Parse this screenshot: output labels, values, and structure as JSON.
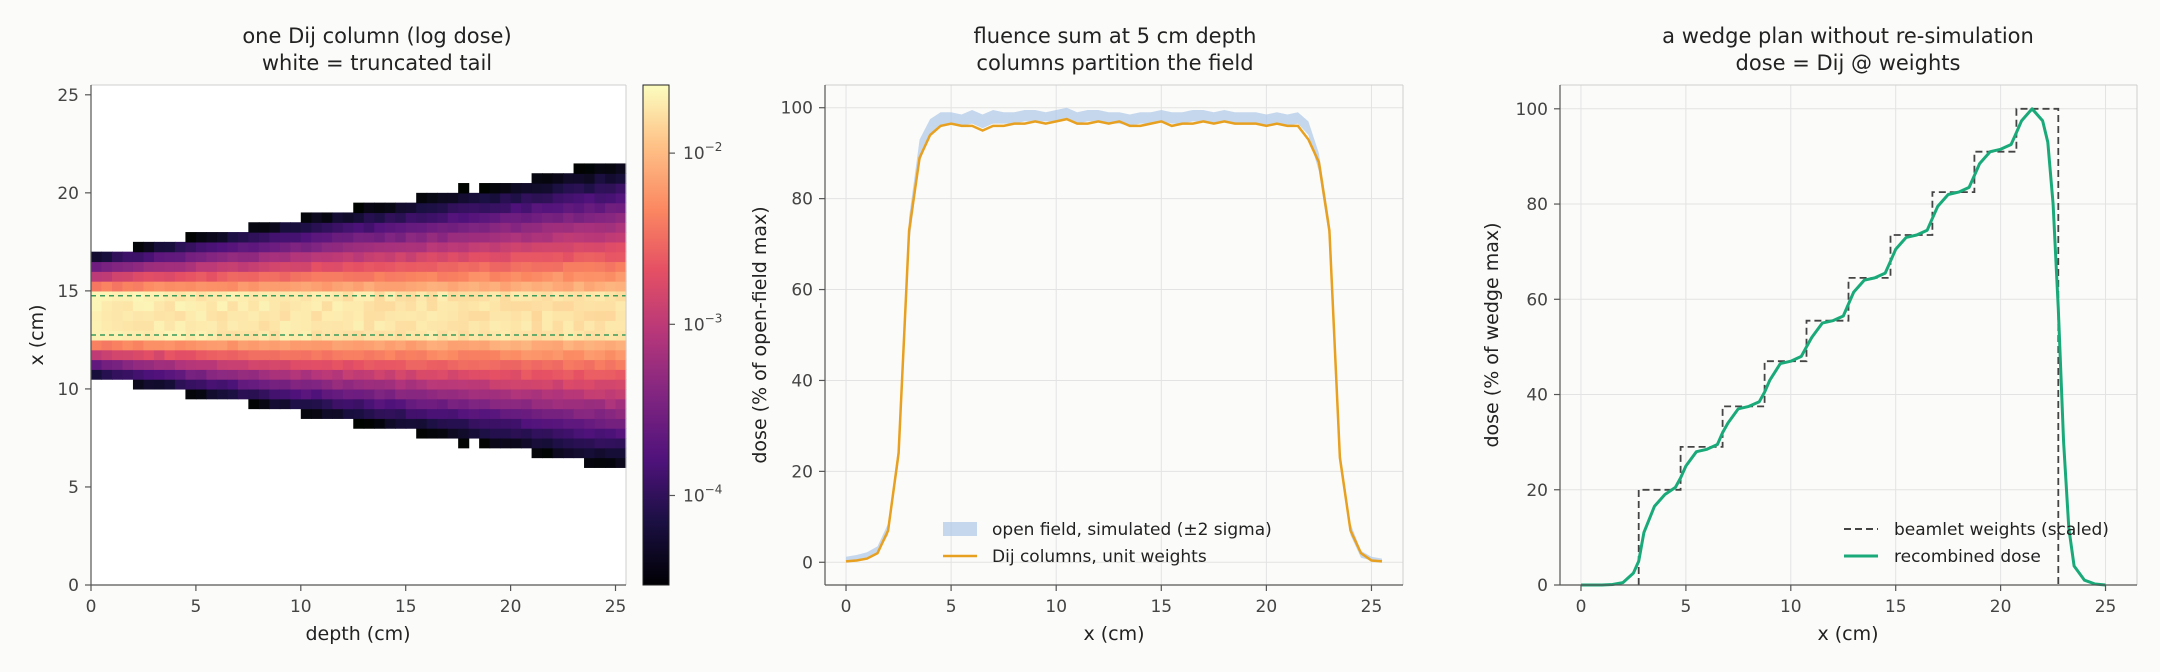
{
  "chart_data": [
    {
      "type": "heatmap",
      "title": "one Dij column (log dose)",
      "subtitle": "white = truncated tail",
      "xlabel": "depth (cm)",
      "ylabel": "x (cm)",
      "xlim": [
        0,
        25.5
      ],
      "ylim": [
        0,
        25.5
      ],
      "xticks": [
        0,
        5,
        10,
        15,
        20,
        25
      ],
      "yticks": [
        0,
        5,
        10,
        15,
        20,
        25
      ],
      "color_scale": "log",
      "colormap": "magma",
      "colorbar_range": [
        3e-05,
        0.025
      ],
      "colorbar_ticks": [
        {
          "value": 0.01,
          "label": "10",
          "exp": "−2"
        },
        {
          "value": 0.001,
          "label": "10",
          "exp": "−3"
        },
        {
          "value": 0.0001,
          "label": "10",
          "exp": "−4"
        }
      ],
      "beam_edges": [
        12.75,
        14.75
      ],
      "beam_center": 13.75,
      "peak_dose": 0.02,
      "truncation_threshold": 3e-05
    },
    {
      "type": "line",
      "title": "fluence sum at 5 cm depth",
      "subtitle": "columns partition the field",
      "xlabel": "x (cm)",
      "ylabel": "dose (% of open-field max)",
      "xlim": [
        -1,
        26.5
      ],
      "ylim": [
        -5,
        105
      ],
      "xticks": [
        0,
        5,
        10,
        15,
        20,
        25
      ],
      "yticks": [
        0,
        20,
        40,
        60,
        80,
        100
      ],
      "grid": true,
      "legend_position": "lower-center",
      "x": [
        0,
        0.5,
        1,
        1.5,
        2,
        2.5,
        3,
        3.5,
        4,
        4.5,
        5,
        5.5,
        6,
        6.5,
        7,
        7.5,
        8,
        8.5,
        9,
        9.5,
        10,
        10.5,
        11,
        11.5,
        12,
        12.5,
        13,
        13.5,
        14,
        14.5,
        15,
        15.5,
        16,
        16.5,
        17,
        17.5,
        18,
        18.5,
        19,
        19.5,
        20,
        20.5,
        21,
        21.5,
        22,
        22.5,
        23,
        23.5,
        24,
        24.5,
        25,
        25.5
      ],
      "series": [
        {
          "name": "open field, simulated (±2 sigma)",
          "kind": "band",
          "color": "#aec7e8",
          "lower": [
            0.3,
            0.4,
            0.8,
            2,
            6,
            22,
            70,
            88,
            94,
            96,
            96.5,
            96,
            96.5,
            95.5,
            96.5,
            96.5,
            96.5,
            97,
            97,
            97,
            97,
            97.5,
            96.5,
            97,
            97,
            96.5,
            96.5,
            96,
            96.5,
            96.5,
            97,
            96.5,
            96.5,
            97,
            97,
            96.5,
            97,
            96.5,
            96.5,
            96.5,
            96,
            96.5,
            96,
            96.5,
            94,
            86,
            71,
            22,
            6,
            1,
            0.4,
            0.3
          ],
          "upper": [
            1.2,
            1.6,
            2.2,
            3.5,
            8.5,
            26,
            76,
            93,
            97.5,
            99,
            99,
            98.5,
            99.5,
            98.5,
            99.5,
            99,
            99,
            99.5,
            99.5,
            99,
            99.5,
            100,
            99,
            99.5,
            99.5,
            99,
            99,
            98.5,
            99,
            99,
            99.5,
            99,
            99,
            99.5,
            99.5,
            99,
            99.5,
            99,
            99,
            99,
            98.5,
            99,
            98.5,
            99,
            97,
            90,
            75,
            25,
            8.5,
            2.5,
            1.2,
            0.8
          ]
        },
        {
          "name": "Dij columns, unit weights",
          "kind": "line",
          "color": "#e8a020",
          "values": [
            0.2,
            0.4,
            0.8,
            2,
            7,
            24,
            73,
            89,
            94,
            96,
            96.5,
            96,
            96,
            95,
            96,
            96,
            96.5,
            96.5,
            97,
            96.5,
            97,
            97.5,
            96.5,
            96.5,
            97,
            96.5,
            97,
            96,
            96,
            96.5,
            97,
            96,
            96.5,
            96.5,
            97,
            96.5,
            97,
            96.5,
            96.5,
            96.5,
            96,
            96.5,
            96,
            96,
            93,
            88,
            73,
            23,
            7,
            2,
            0.4,
            0.2
          ]
        }
      ]
    },
    {
      "type": "line",
      "title": "a wedge plan without re-simulation",
      "subtitle": "dose = Dij @ weights",
      "xlabel": "x (cm)",
      "ylabel": "dose (% of wedge max)",
      "xlim": [
        -1,
        26.5
      ],
      "ylim": [
        0,
        105
      ],
      "xticks": [
        0,
        5,
        10,
        15,
        20,
        25
      ],
      "yticks": [
        0,
        20,
        40,
        60,
        80,
        100
      ],
      "grid": true,
      "legend_position": "lower-right",
      "series": [
        {
          "name": "beamlet weights (scaled)",
          "kind": "step",
          "color": "#444444",
          "dashed": true,
          "x": [
            2.75,
            2.75,
            4.75,
            4.75,
            6.75,
            6.75,
            8.75,
            8.75,
            10.75,
            10.75,
            12.75,
            12.75,
            14.75,
            14.75,
            16.75,
            16.75,
            18.75,
            18.75,
            20.75,
            20.75,
            22.75,
            22.75
          ],
          "values": [
            0,
            20,
            20,
            29,
            29,
            37.5,
            37.5,
            47,
            47,
            55.5,
            55.5,
            64.5,
            64.5,
            73.5,
            73.5,
            82.5,
            82.5,
            91,
            91,
            100,
            100,
            0
          ]
        },
        {
          "name": "recombined dose",
          "kind": "line",
          "color": "#1aaa7a",
          "x": [
            0,
            1,
            1.5,
            2,
            2.5,
            2.75,
            3,
            3.5,
            4,
            4.5,
            4.75,
            5,
            5.5,
            6,
            6.5,
            6.75,
            7,
            7.5,
            8,
            8.5,
            8.75,
            9,
            9.5,
            10,
            10.5,
            10.75,
            11,
            11.5,
            12,
            12.5,
            12.75,
            13,
            13.5,
            14,
            14.5,
            14.75,
            15,
            15.5,
            16,
            16.5,
            16.75,
            17,
            17.5,
            18,
            18.5,
            18.75,
            19,
            19.5,
            20,
            20.5,
            20.75,
            21,
            21.5,
            22,
            22.25,
            22.5,
            22.75,
            23,
            23.25,
            23.5,
            24,
            24.5,
            25
          ],
          "values": [
            0,
            0,
            0.1,
            0.5,
            2.5,
            5,
            11,
            16.5,
            19,
            20.5,
            22.5,
            25,
            28,
            28.5,
            29.5,
            32,
            34,
            37,
            37.5,
            38.5,
            40.5,
            43,
            46.5,
            47,
            48,
            50,
            52,
            55,
            55.5,
            56.5,
            59,
            61.5,
            64,
            64.5,
            65.5,
            68,
            70.5,
            73,
            73.5,
            74.5,
            77,
            79.5,
            82,
            82.5,
            83.5,
            86,
            88.5,
            91,
            91.5,
            92.5,
            95,
            97.5,
            100,
            97.5,
            93,
            80,
            58,
            30,
            12,
            4,
            1,
            0.2,
            0
          ]
        }
      ]
    }
  ]
}
